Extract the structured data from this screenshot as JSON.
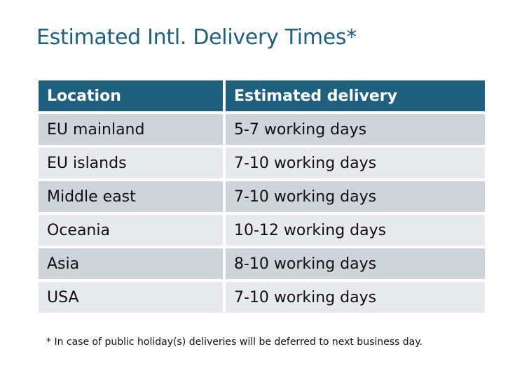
{
  "title": "Estimated Intl. Delivery Times*",
  "table": {
    "headers": [
      "Location",
      "Estimated delivery"
    ],
    "rows": [
      [
        "EU mainland",
        "5-7 working days"
      ],
      [
        "EU islands",
        "7-10 working days"
      ],
      [
        "Middle east",
        "7-10 working days"
      ],
      [
        "Oceania",
        "10-12 working days"
      ],
      [
        "Asia",
        "8-10 working days"
      ],
      [
        "USA",
        "7-10 working days"
      ]
    ]
  },
  "footnote": "* In case of public holiday(s) deliveries will be deferred to next business day.",
  "colors": {
    "header": "#20607f",
    "row_odd": "#cfd3da",
    "row_even": "#e7e9ec",
    "title": "#1f5f7f"
  }
}
